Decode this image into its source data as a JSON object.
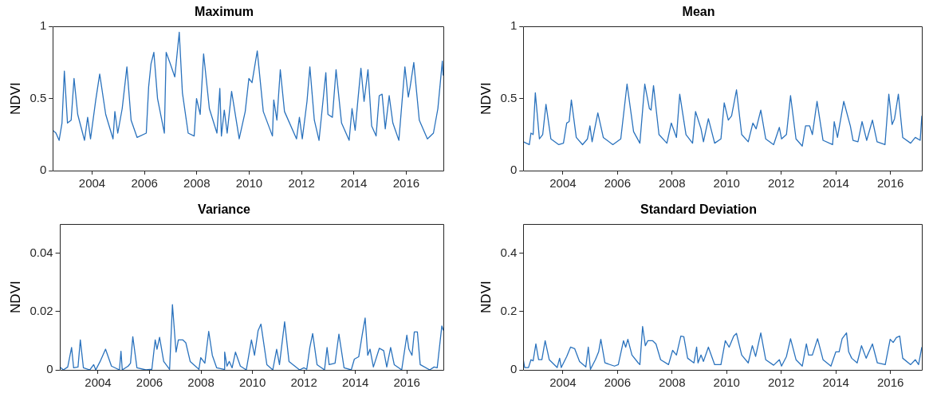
{
  "chart_data": [
    {
      "type": "line",
      "title": "Maximum",
      "ylabel": "NDVI",
      "color": "#2a72bd",
      "xlim": [
        2002.5,
        2017.42
      ],
      "ylim": [
        0,
        1
      ],
      "xticks": [
        2004,
        2006,
        2008,
        2010,
        2012,
        2014,
        2016
      ],
      "yticks": [
        0,
        0.5,
        1
      ],
      "x": [
        2002.5,
        2002.62,
        2002.74,
        2002.85,
        2002.94,
        2003.06,
        2003.2,
        2003.31,
        2003.45,
        2003.71,
        2003.83,
        2003.94,
        2004.14,
        2004.29,
        2004.52,
        2004.8,
        2004.87,
        2004.98,
        2005.15,
        2005.33,
        2005.49,
        2005.72,
        2006.07,
        2006.16,
        2006.25,
        2006.36,
        2006.5,
        2006.76,
        2006.83,
        2006.99,
        2007.16,
        2007.22,
        2007.33,
        2007.45,
        2007.67,
        2007.9,
        2007.99,
        2008.13,
        2008.26,
        2008.48,
        2008.77,
        2008.88,
        2008.94,
        2009.05,
        2009.16,
        2009.33,
        2009.62,
        2009.85,
        2009.99,
        2010.11,
        2010.31,
        2010.54,
        2010.89,
        2010.94,
        2011.06,
        2011.19,
        2011.35,
        2011.81,
        2011.92,
        2012.03,
        2012.21,
        2012.32,
        2012.49,
        2012.67,
        2012.93,
        2013.01,
        2013.18,
        2013.32,
        2013.53,
        2013.82,
        2013.93,
        2014.05,
        2014.16,
        2014.27,
        2014.39,
        2014.54,
        2014.68,
        2014.85,
        2014.97,
        2015.08,
        2015.2,
        2015.35,
        2015.49,
        2015.72,
        2015.95,
        2016.08,
        2016.15,
        2016.29,
        2016.5,
        2016.81,
        2017.04,
        2017.21,
        2017.38,
        2017.41
      ],
      "values": [
        0.28,
        0.26,
        0.21,
        0.33,
        0.69,
        0.33,
        0.35,
        0.64,
        0.39,
        0.21,
        0.37,
        0.22,
        0.49,
        0.67,
        0.39,
        0.22,
        0.41,
        0.26,
        0.43,
        0.72,
        0.35,
        0.23,
        0.26,
        0.58,
        0.74,
        0.82,
        0.5,
        0.26,
        0.82,
        0.74,
        0.65,
        0.76,
        0.96,
        0.54,
        0.26,
        0.24,
        0.5,
        0.39,
        0.81,
        0.43,
        0.26,
        0.57,
        0.24,
        0.42,
        0.26,
        0.55,
        0.22,
        0.41,
        0.64,
        0.61,
        0.83,
        0.41,
        0.24,
        0.49,
        0.35,
        0.7,
        0.41,
        0.22,
        0.37,
        0.22,
        0.48,
        0.72,
        0.35,
        0.21,
        0.68,
        0.39,
        0.37,
        0.7,
        0.33,
        0.21,
        0.43,
        0.28,
        0.5,
        0.71,
        0.48,
        0.7,
        0.31,
        0.24,
        0.52,
        0.53,
        0.29,
        0.52,
        0.33,
        0.21,
        0.72,
        0.51,
        0.58,
        0.75,
        0.35,
        0.22,
        0.26,
        0.43,
        0.76,
        0.66
      ]
    },
    {
      "type": "line",
      "title": "Mean",
      "ylabel": "NDVI",
      "color": "#2a72bd",
      "xlim": [
        2002.55,
        2017.15
      ],
      "ylim": [
        0,
        1
      ],
      "xticks": [
        2004,
        2006,
        2008,
        2010,
        2012,
        2014,
        2016
      ],
      "yticks": [
        0,
        0.5,
        1
      ],
      "x": [
        2002.55,
        2002.77,
        2002.83,
        2002.91,
        2002.99,
        2003.14,
        2003.26,
        2003.38,
        2003.56,
        2003.85,
        2004.02,
        2004.14,
        2004.23,
        2004.31,
        2004.49,
        2004.72,
        2004.9,
        2004.99,
        2005.07,
        2005.28,
        2005.48,
        2005.83,
        2006.12,
        2006.35,
        2006.59,
        2006.82,
        2007.0,
        2007.17,
        2007.23,
        2007.32,
        2007.52,
        2007.81,
        2007.97,
        2008.16,
        2008.28,
        2008.51,
        2008.75,
        2008.86,
        2009.06,
        2009.15,
        2009.33,
        2009.56,
        2009.79,
        2009.91,
        2010.06,
        2010.18,
        2010.36,
        2010.55,
        2010.79,
        2010.96,
        2011.08,
        2011.25,
        2011.43,
        2011.72,
        2011.93,
        2012.01,
        2012.19,
        2012.34,
        2012.54,
        2012.77,
        2012.89,
        2013.04,
        2013.14,
        2013.31,
        2013.53,
        2013.88,
        2013.94,
        2014.06,
        2014.29,
        2014.53,
        2014.63,
        2014.81,
        2014.96,
        2015.13,
        2015.34,
        2015.51,
        2015.8,
        2015.94,
        2016.06,
        2016.15,
        2016.29,
        2016.45,
        2016.74,
        2016.91,
        2017.09,
        2017.15
      ],
      "values": [
        0.2,
        0.18,
        0.26,
        0.25,
        0.54,
        0.22,
        0.25,
        0.46,
        0.22,
        0.18,
        0.19,
        0.33,
        0.34,
        0.49,
        0.23,
        0.18,
        0.22,
        0.31,
        0.2,
        0.4,
        0.23,
        0.18,
        0.22,
        0.6,
        0.27,
        0.19,
        0.6,
        0.43,
        0.42,
        0.59,
        0.25,
        0.19,
        0.33,
        0.23,
        0.53,
        0.25,
        0.19,
        0.41,
        0.29,
        0.2,
        0.36,
        0.19,
        0.22,
        0.47,
        0.35,
        0.38,
        0.56,
        0.25,
        0.2,
        0.33,
        0.29,
        0.42,
        0.22,
        0.18,
        0.3,
        0.22,
        0.25,
        0.52,
        0.22,
        0.17,
        0.31,
        0.31,
        0.25,
        0.48,
        0.21,
        0.18,
        0.34,
        0.23,
        0.48,
        0.31,
        0.21,
        0.2,
        0.34,
        0.21,
        0.35,
        0.2,
        0.18,
        0.53,
        0.32,
        0.36,
        0.53,
        0.23,
        0.19,
        0.23,
        0.21,
        0.38
      ]
    },
    {
      "type": "line",
      "title": "Variance",
      "ylabel": "NDVI",
      "color": "#2a72bd",
      "xlim": [
        2002.5,
        2017.42
      ],
      "ylim": [
        0,
        0.05
      ],
      "xticks": [
        2004,
        2006,
        2008,
        2010,
        2012,
        2014,
        2016
      ],
      "yticks": [
        0,
        0.02,
        0.04
      ],
      "x": [
        2002.51,
        2002.65,
        2002.82,
        2002.97,
        2003.05,
        2003.22,
        2003.31,
        2003.43,
        2003.68,
        2003.83,
        2003.91,
        2004.08,
        2004.29,
        2004.52,
        2004.83,
        2004.89,
        2004.94,
        2005.17,
        2005.26,
        2005.35,
        2005.51,
        2005.86,
        2006.09,
        2006.22,
        2006.29,
        2006.39,
        2006.55,
        2006.78,
        2006.89,
        2007.03,
        2007.12,
        2007.29,
        2007.41,
        2007.58,
        2007.92,
        2007.99,
        2008.15,
        2008.3,
        2008.44,
        2008.61,
        2008.9,
        2008.92,
        2009.01,
        2009.1,
        2009.21,
        2009.34,
        2009.53,
        2009.76,
        2009.96,
        2010.08,
        2010.22,
        2010.33,
        2010.56,
        2010.79,
        2010.94,
        2011.05,
        2011.25,
        2011.42,
        2011.83,
        2012.0,
        2012.11,
        2012.23,
        2012.34,
        2012.51,
        2012.8,
        2012.9,
        2012.98,
        2013.21,
        2013.36,
        2013.56,
        2013.84,
        2013.96,
        2014.13,
        2014.27,
        2014.38,
        2014.48,
        2014.57,
        2014.7,
        2014.93,
        2015.1,
        2015.22,
        2015.37,
        2015.51,
        2015.8,
        2016.0,
        2016.08,
        2016.2,
        2016.29,
        2016.41,
        2016.52,
        2016.89,
        2017.06,
        2017.18,
        2017.36,
        2017.42
      ],
      "values": [
        0.001,
        0,
        0.001,
        0.0077,
        0.0007,
        0.001,
        0.0103,
        0.0007,
        0,
        0.0018,
        0,
        0.0029,
        0.0071,
        0.0013,
        0,
        0.0064,
        0,
        0.0013,
        0.0023,
        0.0114,
        0.0007,
        0,
        0.0002,
        0.0103,
        0.0071,
        0.0112,
        0.0029,
        0.0002,
        0.0224,
        0.0061,
        0.0103,
        0.0103,
        0.0093,
        0.0029,
        0.0002,
        0.0042,
        0.0023,
        0.0132,
        0.005,
        0.0007,
        0.0002,
        0.0061,
        0.0013,
        0.0029,
        0.0007,
        0.0061,
        0.0013,
        0,
        0.0103,
        0.005,
        0.0135,
        0.0157,
        0.0018,
        0,
        0.0071,
        0.0018,
        0.0165,
        0.0029,
        0,
        0.0007,
        0.0002,
        0.0077,
        0.0125,
        0.0018,
        0,
        0.0077,
        0.0018,
        0.0023,
        0.0123,
        0.0007,
        0,
        0.0037,
        0.0045,
        0.0123,
        0.0178,
        0.005,
        0.0071,
        0.001,
        0.0074,
        0.0066,
        0.001,
        0.0077,
        0.0018,
        0,
        0.0119,
        0.0071,
        0.005,
        0.013,
        0.013,
        0.0018,
        0,
        0.001,
        0.0007,
        0.0151,
        0.0135
      ]
    },
    {
      "type": "line",
      "title": "Standard Deviation",
      "ylabel": "NDVI",
      "color": "#2a72bd",
      "xlim": [
        2002.55,
        2017.15
      ],
      "ylim": [
        0,
        0.5
      ],
      "xticks": [
        2004,
        2006,
        2008,
        2010,
        2012,
        2014,
        2016
      ],
      "yticks": [
        0,
        0.2,
        0.4
      ],
      "x": [
        2002.55,
        2002.6,
        2002.74,
        2002.83,
        2002.91,
        2003.01,
        2003.11,
        2003.23,
        2003.35,
        2003.5,
        2003.79,
        2003.88,
        2003.94,
        2004.14,
        2004.28,
        2004.43,
        2004.61,
        2004.84,
        2004.93,
        2005.01,
        2005.19,
        2005.31,
        2005.39,
        2005.54,
        2005.89,
        2006.03,
        2006.22,
        2006.3,
        2006.38,
        2006.53,
        2006.76,
        2006.82,
        2006.92,
        2007.02,
        2007.11,
        2007.29,
        2007.41,
        2007.58,
        2007.87,
        2008.02,
        2008.16,
        2008.32,
        2008.43,
        2008.57,
        2008.8,
        2008.9,
        2008.95,
        2009.06,
        2009.15,
        2009.33,
        2009.56,
        2009.79,
        2009.95,
        2010.09,
        2010.26,
        2010.36,
        2010.55,
        2010.79,
        2010.94,
        2011.06,
        2011.25,
        2011.43,
        2011.72,
        2011.93,
        2012.01,
        2012.19,
        2012.34,
        2012.54,
        2012.77,
        2012.92,
        2013.0,
        2013.14,
        2013.33,
        2013.53,
        2013.82,
        2014.0,
        2014.12,
        2014.23,
        2014.39,
        2014.47,
        2014.58,
        2014.78,
        2014.94,
        2015.11,
        2015.34,
        2015.52,
        2015.81,
        2015.99,
        2016.1,
        2016.22,
        2016.34,
        2016.45,
        2016.74,
        2016.91,
        2017.03,
        2017.15
      ],
      "values": [
        0.035,
        0.008,
        0.008,
        0.035,
        0.031,
        0.089,
        0.035,
        0.035,
        0.1,
        0.035,
        0.008,
        0.04,
        0.008,
        0.046,
        0.078,
        0.073,
        0.029,
        0.01,
        0.078,
        0.002,
        0.035,
        0.062,
        0.105,
        0.024,
        0.013,
        0.018,
        0.1,
        0.078,
        0.105,
        0.051,
        0.024,
        0.018,
        0.149,
        0.083,
        0.1,
        0.1,
        0.089,
        0.035,
        0.018,
        0.067,
        0.051,
        0.116,
        0.114,
        0.04,
        0.024,
        0.078,
        0.024,
        0.051,
        0.029,
        0.078,
        0.018,
        0.018,
        0.1,
        0.078,
        0.116,
        0.125,
        0.051,
        0.024,
        0.083,
        0.046,
        0.127,
        0.035,
        0.016,
        0.035,
        0.013,
        0.046,
        0.107,
        0.035,
        0.013,
        0.089,
        0.051,
        0.051,
        0.107,
        0.035,
        0.013,
        0.062,
        0.062,
        0.107,
        0.127,
        0.062,
        0.04,
        0.024,
        0.083,
        0.04,
        0.089,
        0.024,
        0.018,
        0.105,
        0.094,
        0.111,
        0.116,
        0.04,
        0.018,
        0.035,
        0.018,
        0.078
      ]
    }
  ]
}
